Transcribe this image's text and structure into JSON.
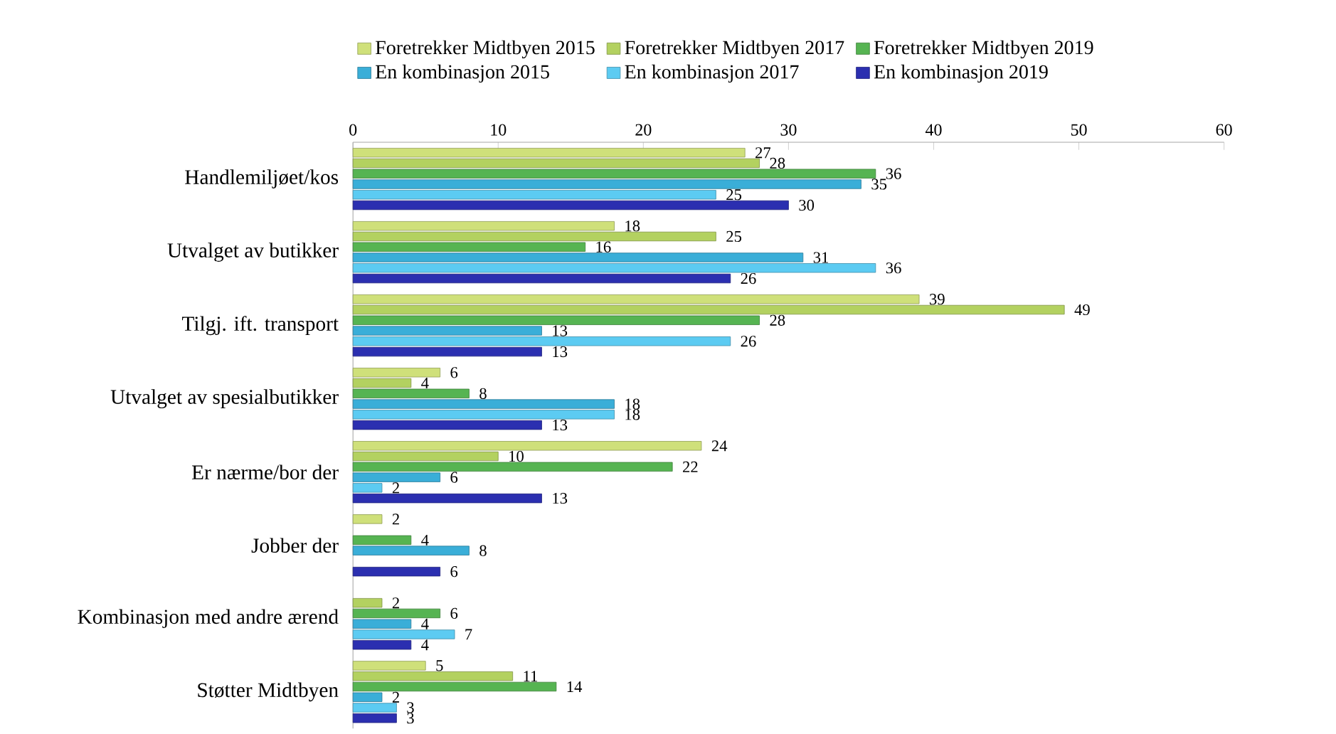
{
  "chart_data": {
    "type": "bar",
    "orientation": "horizontal",
    "categories": [
      "Handlemiljøet/kos",
      "Utvalget av butikker",
      "Tilgj. ift. transport",
      "Utvalget av spesialbutikker",
      "Er nærme/bor der",
      "Jobber der",
      "Kombinasjon med andre ærend",
      "Støtter Midtbyen"
    ],
    "series": [
      {
        "name": "Foretrekker Midtbyen 2015",
        "color": "#cfe07a",
        "values": [
          27,
          18,
          39,
          6,
          24,
          2,
          null,
          5
        ]
      },
      {
        "name": "Foretrekker Midtbyen 2017",
        "color": "#b3d160",
        "values": [
          28,
          25,
          49,
          4,
          10,
          null,
          2,
          11
        ]
      },
      {
        "name": "Foretrekker Midtbyen 2019",
        "color": "#56b452",
        "values": [
          36,
          16,
          28,
          8,
          22,
          4,
          6,
          14
        ]
      },
      {
        "name": "En kombinasjon 2015",
        "color": "#3aaed8",
        "values": [
          35,
          31,
          13,
          18,
          6,
          8,
          4,
          2
        ]
      },
      {
        "name": "En kombinasjon 2017",
        "color": "#5ccbf2",
        "values": [
          25,
          36,
          26,
          18,
          2,
          null,
          7,
          3
        ]
      },
      {
        "name": "En kombinasjon 2019",
        "color": "#2b2fb0",
        "values": [
          30,
          26,
          13,
          13,
          13,
          6,
          4,
          3
        ]
      }
    ],
    "xlim": [
      0,
      60
    ],
    "xticks": [
      0,
      10,
      20,
      30,
      40,
      50,
      60
    ],
    "data_labels": true,
    "legend": "top",
    "grid": false
  }
}
